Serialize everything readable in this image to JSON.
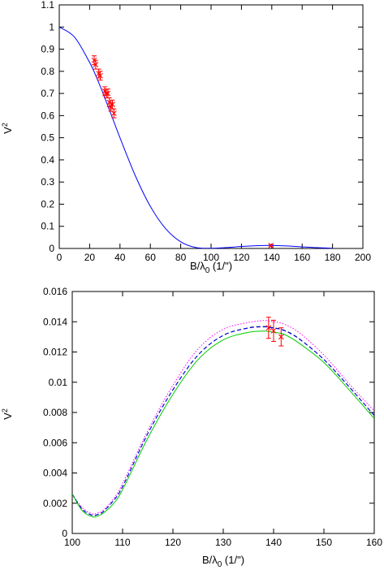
{
  "chart_data": [
    {
      "type": "line",
      "xlabel": "B/λ0 (1/\")",
      "ylabel": "V2",
      "xlim": [
        0,
        200
      ],
      "ylim": [
        0,
        1.1
      ],
      "xticks": [
        "0",
        "20",
        "40",
        "60",
        "80",
        "100",
        "120",
        "140",
        "160",
        "180",
        "200"
      ],
      "yticks": [
        "0",
        "0.1",
        "0.2",
        "0.3",
        "0.4",
        "0.5",
        "0.6",
        "0.7",
        "0.8",
        "0.9",
        "1",
        "1.1"
      ],
      "grid": false,
      "series": [
        {
          "style": "lines",
          "color": "#0000ff",
          "x": [
            0,
            10,
            20,
            25,
            30,
            35,
            40,
            50,
            60,
            70,
            80,
            90,
            100,
            110,
            120,
            130,
            140,
            150,
            160,
            170,
            180
          ],
          "y": [
            1.0,
            0.955,
            0.84,
            0.765,
            0.68,
            0.59,
            0.5,
            0.33,
            0.19,
            0.09,
            0.03,
            0.004,
            0.001,
            0.004,
            0.009,
            0.0125,
            0.0135,
            0.0115,
            0.0075,
            0.0035,
            0.001
          ]
        },
        {
          "style": "points-with-errorbars",
          "color": "#ff0000",
          "x": [
            23,
            24,
            26,
            27,
            30,
            31,
            32,
            33,
            34,
            35,
            36,
            139.5
          ],
          "y": [
            0.85,
            0.83,
            0.79,
            0.78,
            0.71,
            0.7,
            0.7,
            0.66,
            0.64,
            0.65,
            0.61,
            0.013
          ],
          "err": [
            0.02,
            0.02,
            0.02,
            0.02,
            0.02,
            0.02,
            0.02,
            0.02,
            0.02,
            0.02,
            0.02,
            0.005
          ]
        }
      ]
    },
    {
      "type": "line",
      "xlabel": "B/λ0 (1/\")",
      "ylabel": "V2",
      "xlim": [
        100,
        160
      ],
      "ylim": [
        0,
        0.016
      ],
      "xticks": [
        "100",
        "110",
        "120",
        "130",
        "140",
        "150",
        "160"
      ],
      "yticks": [
        "0",
        "0.002",
        "0.004",
        "0.006",
        "0.008",
        "0.01",
        "0.012",
        "0.014",
        "0.016"
      ],
      "grid": false,
      "series": [
        {
          "style": "dotted",
          "color": "#ff00ff",
          "x": [
            100,
            102,
            104,
            105,
            106,
            108,
            110,
            115,
            120,
            125,
            130,
            135,
            138,
            139,
            140,
            142,
            145,
            150,
            155,
            160
          ],
          "y": [
            0.0026,
            0.0017,
            0.0013,
            0.00135,
            0.0015,
            0.0022,
            0.0033,
            0.0068,
            0.0098,
            0.0122,
            0.0135,
            0.01395,
            0.01408,
            0.01405,
            0.014,
            0.01385,
            0.0133,
            0.0118,
            0.0099,
            0.0081
          ]
        },
        {
          "style": "dashed",
          "color": "#000000",
          "x": [
            100,
            102,
            104,
            105,
            106,
            108,
            110,
            115,
            120,
            125,
            130,
            135,
            138,
            139,
            140,
            142,
            145,
            150,
            155,
            160
          ],
          "y": [
            0.0026,
            0.0016,
            0.0012,
            0.00125,
            0.0014,
            0.0021,
            0.0031,
            0.0066,
            0.0095,
            0.0118,
            0.0131,
            0.0136,
            0.01368,
            0.01365,
            0.0136,
            0.01345,
            0.0129,
            0.0115,
            0.0097,
            0.0078
          ]
        },
        {
          "style": "dashed",
          "color": "#0000ff",
          "x": [
            100,
            102,
            104,
            105,
            106,
            108,
            110,
            115,
            120,
            125,
            130,
            135,
            138,
            139,
            140,
            142,
            145,
            150,
            155,
            160
          ],
          "y": [
            0.0026,
            0.0016,
            0.0012,
            0.00125,
            0.0014,
            0.0021,
            0.0031,
            0.0066,
            0.0095,
            0.0118,
            0.0131,
            0.01358,
            0.01366,
            0.01363,
            0.01358,
            0.01343,
            0.01288,
            0.0115,
            0.0097,
            0.0078
          ]
        },
        {
          "style": "solid",
          "color": "#00cc00",
          "x": [
            100,
            102,
            104,
            105,
            106,
            108,
            110,
            115,
            120,
            125,
            130,
            135,
            138,
            139,
            140,
            142,
            145,
            150,
            155,
            160
          ],
          "y": [
            0.0026,
            0.0015,
            0.0011,
            0.00115,
            0.0013,
            0.0019,
            0.0029,
            0.0063,
            0.0092,
            0.0115,
            0.0128,
            0.0133,
            0.01338,
            0.01336,
            0.0133,
            0.01318,
            0.0126,
            0.0113,
            0.0095,
            0.0076
          ]
        },
        {
          "style": "points-with-errorbars",
          "color": "#ff0000",
          "x": [
            139,
            140,
            141.5
          ],
          "y": [
            0.0136,
            0.0134,
            0.013
          ],
          "err": [
            0.0007,
            0.0007,
            0.0006
          ]
        }
      ]
    }
  ]
}
